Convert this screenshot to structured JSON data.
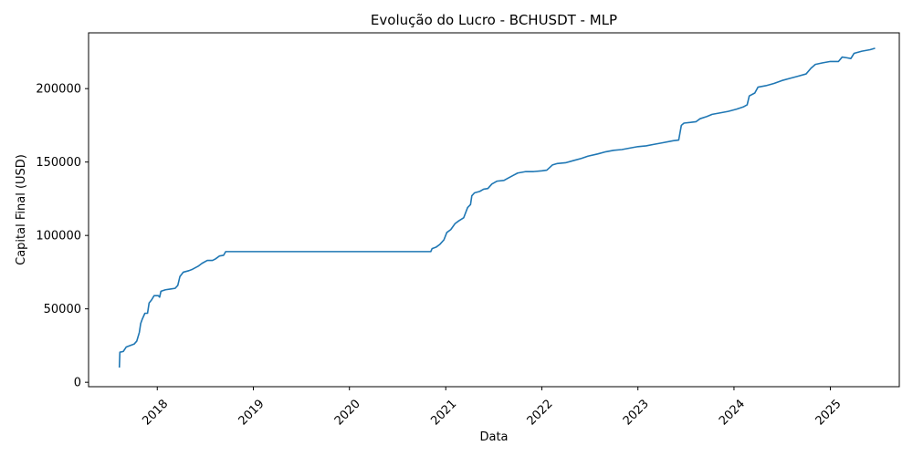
{
  "chart_data": {
    "type": "line",
    "title": "Evolução do Lucro - BCHUSDT - MLP",
    "xlabel": "Data",
    "ylabel": "Capital Final (USD)",
    "xlim": [
      "2017-04-15",
      "2025-09-20"
    ],
    "ylim": [
      -3000,
      238000
    ],
    "x_ticks": [
      "2018",
      "2019",
      "2020",
      "2021",
      "2022",
      "2023",
      "2024",
      "2025"
    ],
    "y_ticks": [
      0,
      50000,
      100000,
      150000,
      200000
    ],
    "grid": false,
    "series": [
      {
        "color": "#1f77b4",
        "points": [
          [
            "2017-08-10",
            10000
          ],
          [
            "2017-08-12",
            20500
          ],
          [
            "2017-08-25",
            21000
          ],
          [
            "2017-09-05",
            24000
          ],
          [
            "2017-09-20",
            25000
          ],
          [
            "2017-10-05",
            26000
          ],
          [
            "2017-10-15",
            28000
          ],
          [
            "2017-10-25",
            34000
          ],
          [
            "2017-10-30",
            40000
          ],
          [
            "2017-11-05",
            43000
          ],
          [
            "2017-11-15",
            47000
          ],
          [
            "2017-11-25",
            47000
          ],
          [
            "2017-12-01",
            54000
          ],
          [
            "2017-12-10",
            56000
          ],
          [
            "2017-12-20",
            59000
          ],
          [
            "2018-01-05",
            59000
          ],
          [
            "2018-01-10",
            58000
          ],
          [
            "2018-01-15",
            62000
          ],
          [
            "2018-02-01",
            63000
          ],
          [
            "2018-02-20",
            63500
          ],
          [
            "2018-03-10",
            64000
          ],
          [
            "2018-03-20",
            66000
          ],
          [
            "2018-03-28",
            72000
          ],
          [
            "2018-04-10",
            75000
          ],
          [
            "2018-05-01",
            76000
          ],
          [
            "2018-05-15",
            77000
          ],
          [
            "2018-06-05",
            79000
          ],
          [
            "2018-06-20",
            81000
          ],
          [
            "2018-07-10",
            83000
          ],
          [
            "2018-07-30",
            83000
          ],
          [
            "2018-08-10",
            84000
          ],
          [
            "2018-08-25",
            86000
          ],
          [
            "2018-09-10",
            86500
          ],
          [
            "2018-09-18",
            89000
          ],
          [
            "2019-06-01",
            89000
          ],
          [
            "2020-01-01",
            89000
          ],
          [
            "2020-06-01",
            89000
          ],
          [
            "2020-11-05",
            89000
          ],
          [
            "2020-11-10",
            91000
          ],
          [
            "2020-11-25",
            92000
          ],
          [
            "2020-12-10",
            94000
          ],
          [
            "2020-12-25",
            97000
          ],
          [
            "2021-01-05",
            102000
          ],
          [
            "2021-01-20",
            104000
          ],
          [
            "2021-02-05",
            108000
          ],
          [
            "2021-02-20",
            110000
          ],
          [
            "2021-03-10",
            112000
          ],
          [
            "2021-03-25",
            119000
          ],
          [
            "2021-04-05",
            121000
          ],
          [
            "2021-04-10",
            127000
          ],
          [
            "2021-04-20",
            129000
          ],
          [
            "2021-05-10",
            130000
          ],
          [
            "2021-05-25",
            131500
          ],
          [
            "2021-06-10",
            132000
          ],
          [
            "2021-06-25",
            135000
          ],
          [
            "2021-07-15",
            137000
          ],
          [
            "2021-08-10",
            137500
          ],
          [
            "2021-08-25",
            139000
          ],
          [
            "2021-09-15",
            141000
          ],
          [
            "2021-10-01",
            142500
          ],
          [
            "2021-11-01",
            143500
          ],
          [
            "2021-12-01",
            143500
          ],
          [
            "2022-01-01",
            144000
          ],
          [
            "2022-01-20",
            144500
          ],
          [
            "2022-02-10",
            148000
          ],
          [
            "2022-03-01",
            149000
          ],
          [
            "2022-04-01",
            149500
          ],
          [
            "2022-05-01",
            151000
          ],
          [
            "2022-06-01",
            152500
          ],
          [
            "2022-06-25",
            154000
          ],
          [
            "2022-08-01",
            155500
          ],
          [
            "2022-09-01",
            157000
          ],
          [
            "2022-10-01",
            158000
          ],
          [
            "2022-11-01",
            158500
          ],
          [
            "2022-12-01",
            159500
          ],
          [
            "2023-01-01",
            160500
          ],
          [
            "2023-02-01",
            161000
          ],
          [
            "2023-03-01",
            162000
          ],
          [
            "2023-04-01",
            163000
          ],
          [
            "2023-05-15",
            164500
          ],
          [
            "2023-06-05",
            165000
          ],
          [
            "2023-06-15",
            175000
          ],
          [
            "2023-06-25",
            176500
          ],
          [
            "2023-07-20",
            177000
          ],
          [
            "2023-08-10",
            177500
          ],
          [
            "2023-08-25",
            179500
          ],
          [
            "2023-09-20",
            181000
          ],
          [
            "2023-10-10",
            182500
          ],
          [
            "2023-11-10",
            183500
          ],
          [
            "2023-12-10",
            184500
          ],
          [
            "2024-01-10",
            186000
          ],
          [
            "2024-02-05",
            187500
          ],
          [
            "2024-02-20",
            189000
          ],
          [
            "2024-02-28",
            195000
          ],
          [
            "2024-03-20",
            197000
          ],
          [
            "2024-04-01",
            201000
          ],
          [
            "2024-05-01",
            202000
          ],
          [
            "2024-06-01",
            203500
          ],
          [
            "2024-07-01",
            205500
          ],
          [
            "2024-08-01",
            207000
          ],
          [
            "2024-09-01",
            208500
          ],
          [
            "2024-10-01",
            210000
          ],
          [
            "2024-10-20",
            214000
          ],
          [
            "2024-11-05",
            216500
          ],
          [
            "2024-12-01",
            217500
          ],
          [
            "2025-01-01",
            218500
          ],
          [
            "2025-02-01",
            218500
          ],
          [
            "2025-02-15",
            221500
          ],
          [
            "2025-03-05",
            221000
          ],
          [
            "2025-03-20",
            220500
          ],
          [
            "2025-04-01",
            224000
          ],
          [
            "2025-05-01",
            225500
          ],
          [
            "2025-06-01",
            226500
          ],
          [
            "2025-06-20",
            227500
          ]
        ]
      }
    ]
  }
}
